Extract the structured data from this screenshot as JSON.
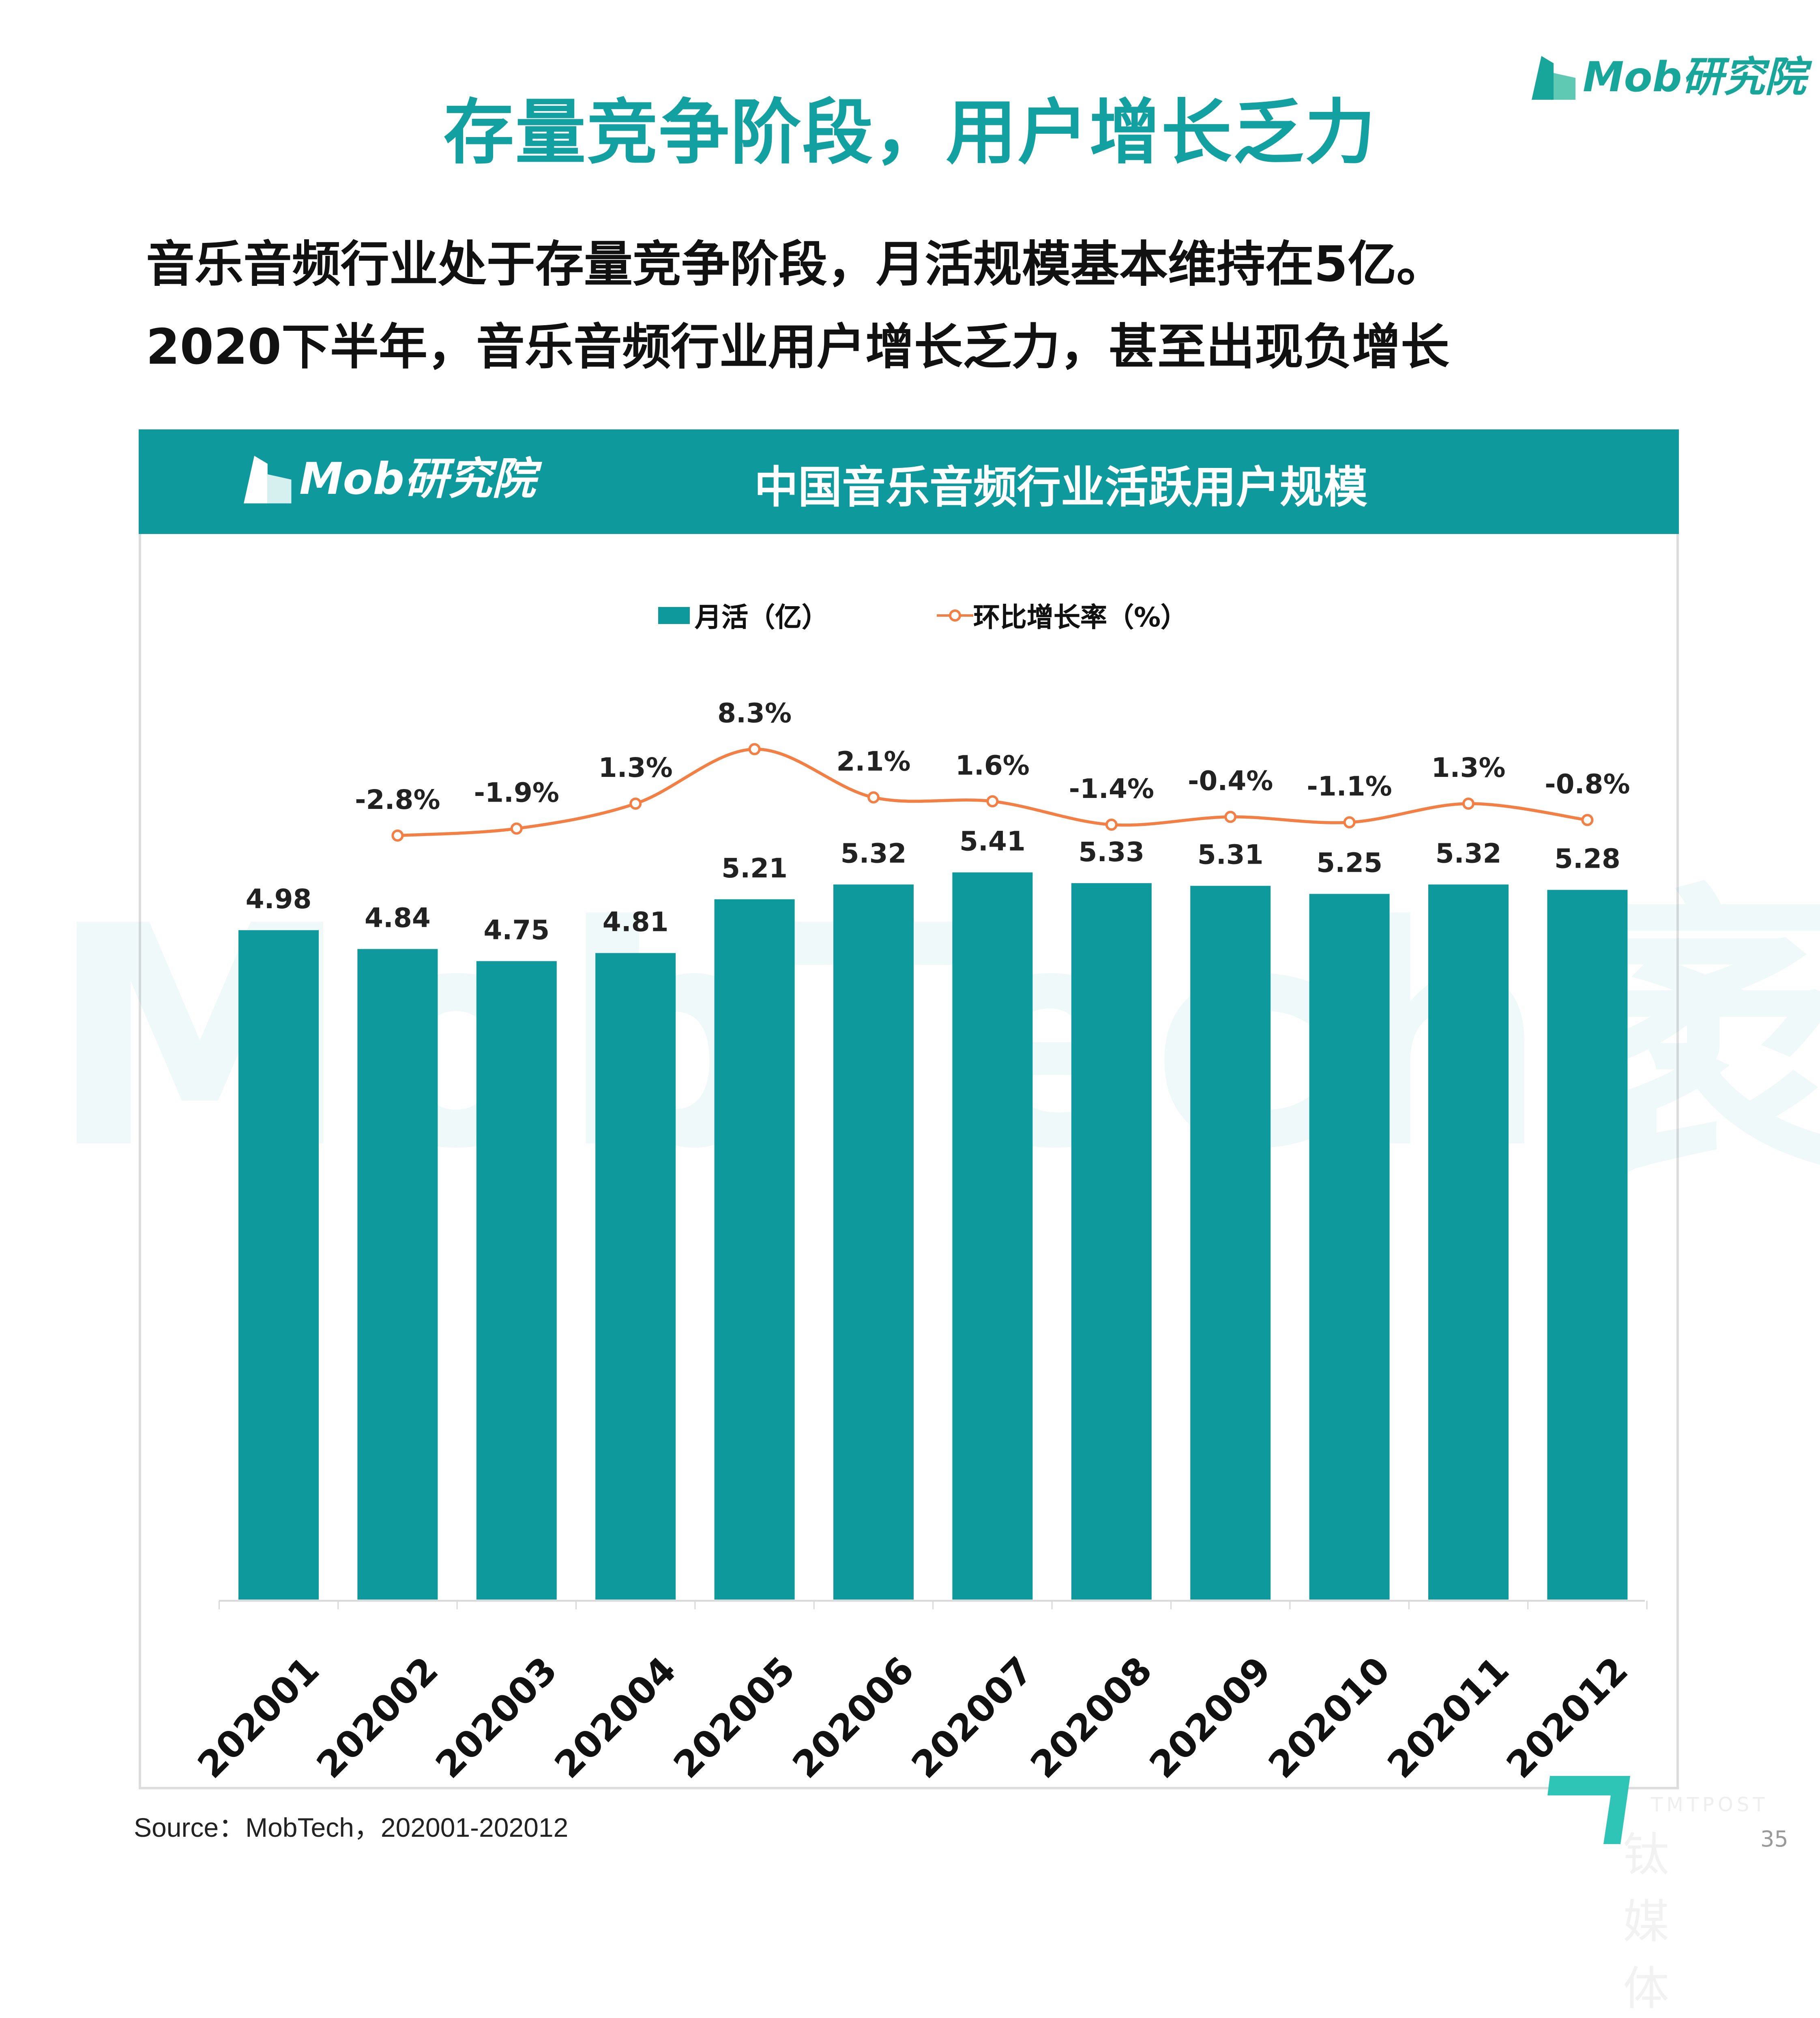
{
  "header": {
    "title": "存量竞争阶段，用户增长乏力",
    "logo_text": "Mob研究院"
  },
  "subtitle": {
    "line1": "音乐音频行业处于存量竞争阶段，月活规模基本维持在5亿。",
    "line2": "2020下半年，音乐音频行业用户增长乏力，甚至出现负增长"
  },
  "panel": {
    "logo_text": "Mob研究院",
    "title": "中国音乐音频行业活跃用户规模",
    "watermark": "MobTech袤博"
  },
  "source": "Source：MobTech，202001-202012",
  "footer": {
    "brand_en": "TMTPOST",
    "brand_cn": "钛媒体",
    "page": "35"
  },
  "colors": {
    "accent": "#0e9a9d",
    "title": "#12a0a0",
    "line": "#f47f45"
  },
  "chart_data": {
    "type": "bar+line",
    "categories": [
      "202001",
      "202002",
      "202003",
      "202004",
      "202005",
      "202006",
      "202007",
      "202008",
      "202009",
      "202010",
      "202011",
      "202012"
    ],
    "series": [
      {
        "name": "月活（亿）",
        "type": "bar",
        "values": [
          4.98,
          4.84,
          4.75,
          4.81,
          5.21,
          5.32,
          5.41,
          5.33,
          5.31,
          5.25,
          5.32,
          5.28
        ],
        "labels": [
          "4.98",
          "4.84",
          "4.75",
          "4.81",
          "5.21",
          "5.32",
          "5.41",
          "5.33",
          "5.31",
          "5.25",
          "5.32",
          "5.28"
        ]
      },
      {
        "name": "环比增长率（%）",
        "type": "line",
        "values": [
          null,
          -2.8,
          -1.9,
          1.3,
          8.3,
          2.1,
          1.6,
          -1.4,
          -0.4,
          -1.1,
          1.3,
          -0.8
        ],
        "labels": [
          "",
          "-2.8%",
          "-1.9%",
          "1.3%",
          "8.3%",
          "2.1%",
          "1.6%",
          "-1.4%",
          "-0.4%",
          "-1.1%",
          "1.3%",
          "-0.8%"
        ]
      }
    ],
    "ylim_bar": [
      0,
      5.41
    ],
    "legend_position": "top",
    "grid": false
  }
}
